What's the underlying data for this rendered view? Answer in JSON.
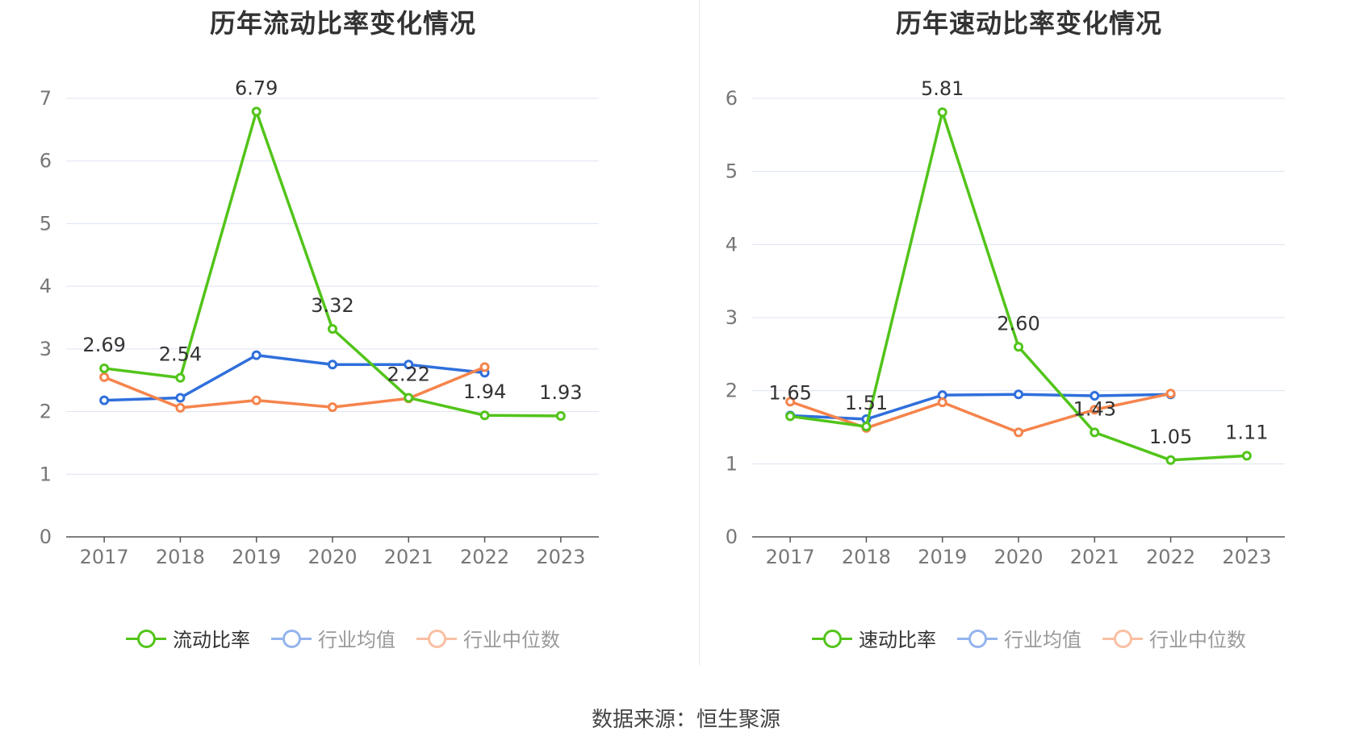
{
  "source_label": "数据来源：恒生聚源",
  "chart_data": [
    {
      "type": "line",
      "title": "历年流动比率变化情况",
      "categories": [
        "2017",
        "2018",
        "2019",
        "2020",
        "2021",
        "2022",
        "2023"
      ],
      "ylim": [
        0,
        7
      ],
      "yticks": [
        0,
        1,
        2,
        3,
        4,
        5,
        6,
        7
      ],
      "grid": true,
      "legend_position": "bottom",
      "series": [
        {
          "name": "流动比率",
          "color": "#52c41a",
          "values": [
            2.69,
            2.54,
            6.79,
            3.32,
            2.22,
            1.94,
            1.93
          ],
          "labels": [
            "2.69",
            "2.54",
            "6.79",
            "3.32",
            "2.22",
            "1.94",
            "1.93"
          ]
        },
        {
          "name": "行业均值",
          "color": "#2f6fdb",
          "values": [
            2.18,
            2.22,
            2.9,
            2.75,
            2.75,
            2.62,
            null
          ]
        },
        {
          "name": "行业中位数",
          "color": "#f5844c",
          "values": [
            2.55,
            2.06,
            2.18,
            2.07,
            2.21,
            2.71,
            null
          ]
        }
      ]
    },
    {
      "type": "line",
      "title": "历年速动比率变化情况",
      "categories": [
        "2017",
        "2018",
        "2019",
        "2020",
        "2021",
        "2022",
        "2023"
      ],
      "ylim": [
        0,
        6
      ],
      "yticks": [
        0,
        1,
        2,
        3,
        4,
        5,
        6
      ],
      "grid": true,
      "legend_position": "bottom",
      "series": [
        {
          "name": "速动比率",
          "color": "#52c41a",
          "values": [
            1.65,
            1.51,
            5.81,
            2.6,
            1.43,
            1.05,
            1.11
          ],
          "labels": [
            "1.65",
            "1.51",
            "5.81",
            "2.60",
            "1.43",
            "1.05",
            "1.11"
          ]
        },
        {
          "name": "行业均值",
          "color": "#2f6fdb",
          "values": [
            1.66,
            1.61,
            1.94,
            1.95,
            1.93,
            1.95,
            null
          ]
        },
        {
          "name": "行业中位数",
          "color": "#f5844c",
          "values": [
            1.85,
            1.49,
            1.84,
            1.43,
            1.74,
            1.96,
            null
          ]
        }
      ]
    }
  ]
}
